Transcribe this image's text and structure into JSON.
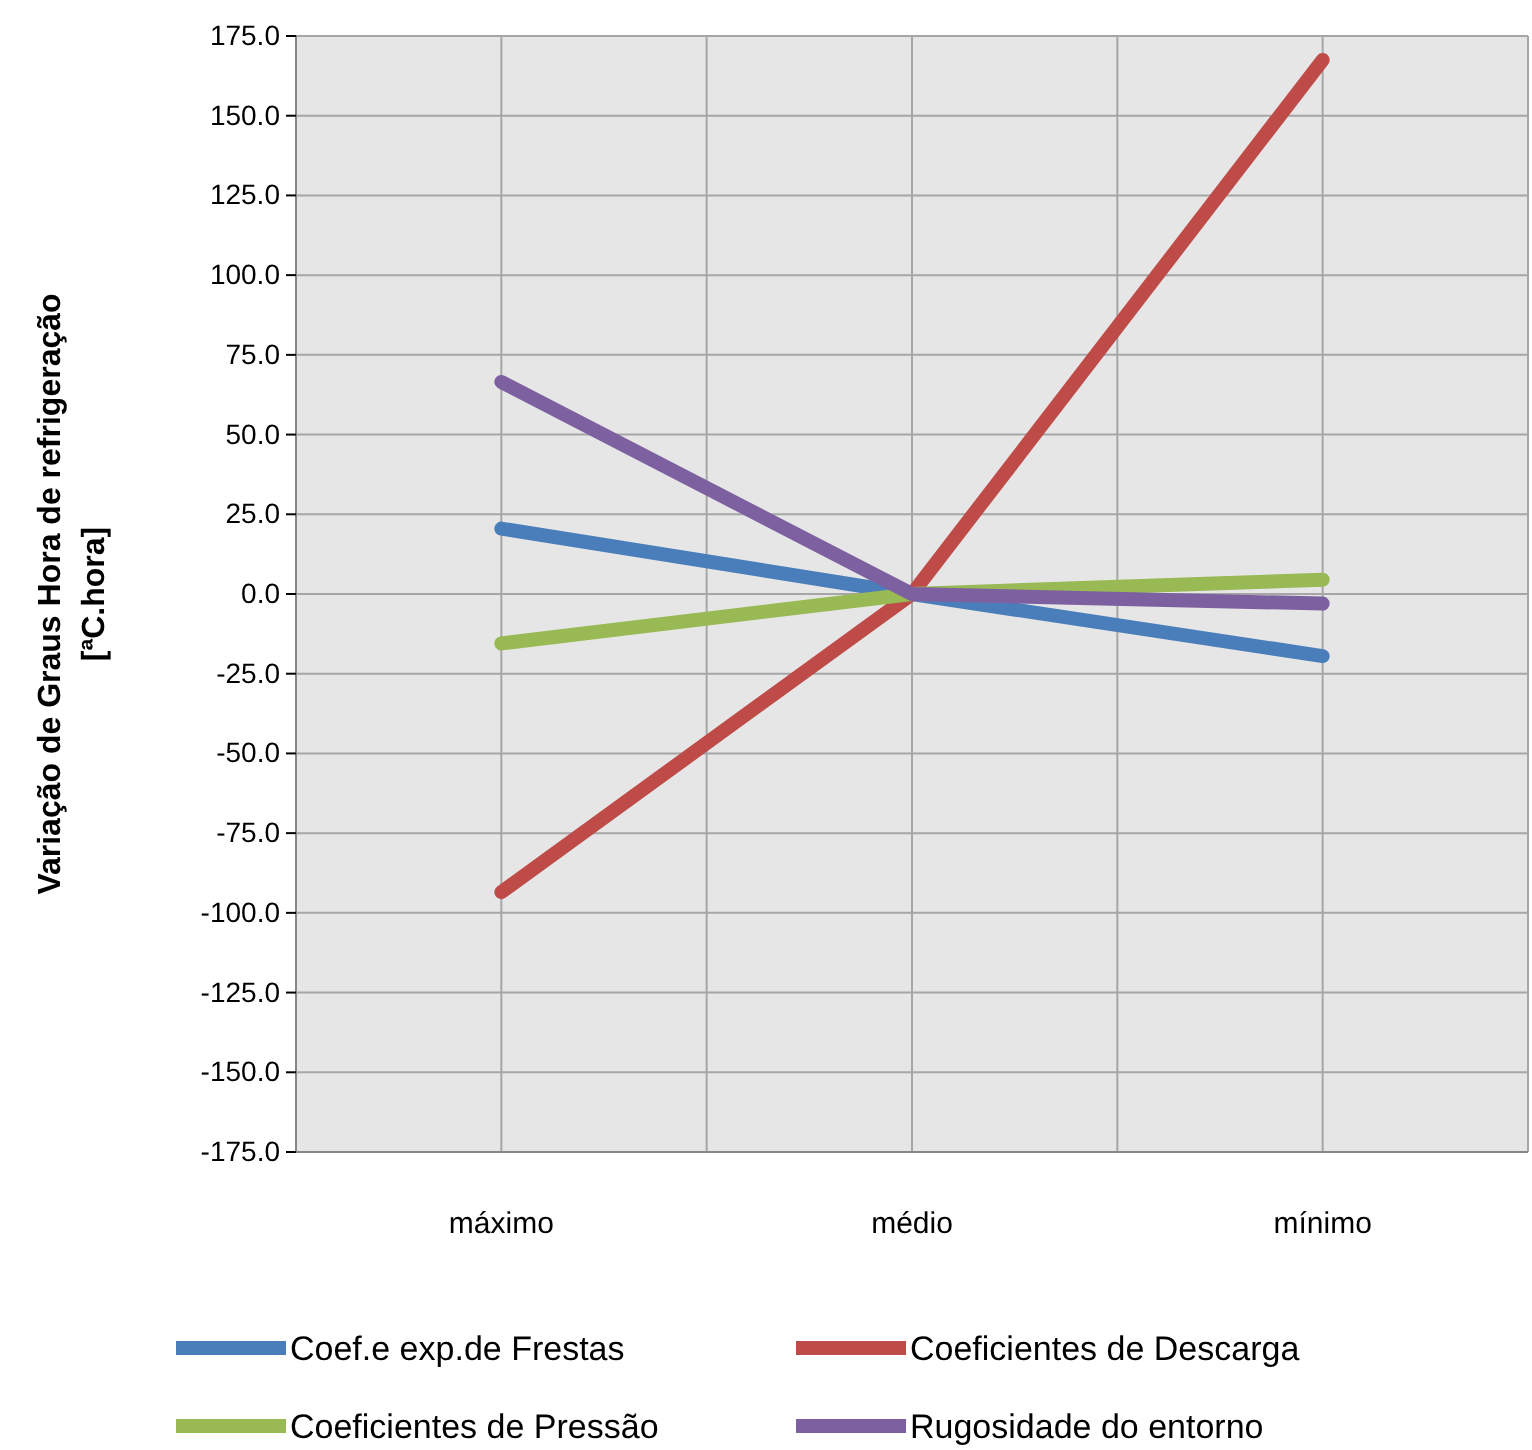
{
  "chart_data": {
    "type": "line",
    "ylabel": "Variação de Graus Hora de refrigeração\n[ªC.hora]",
    "categories": [
      "máximo",
      "médio",
      "mínimo"
    ],
    "series": [
      {
        "name": "Coef.e exp.de Frestas",
        "color": "#4a7ebb",
        "values": [
          20.5,
          0,
          -19.5
        ]
      },
      {
        "name": "Coeficientes de Descarga",
        "color": "#be4b48",
        "values": [
          -93.5,
          0,
          167.5
        ]
      },
      {
        "name": "Coeficientes de Pressão",
        "color": "#98b954",
        "values": [
          -15.5,
          0,
          4.5
        ]
      },
      {
        "name": "Rugosidade do entorno",
        "color": "#7d60a0",
        "values": [
          66.5,
          0,
          -3
        ]
      }
    ],
    "ylim": [
      -175,
      175
    ],
    "yticks": [
      {
        "value": 175,
        "label": "175.0"
      },
      {
        "value": 150,
        "label": "150.0"
      },
      {
        "value": 125,
        "label": "125.0"
      },
      {
        "value": 100,
        "label": "100.0"
      },
      {
        "value": 75,
        "label": "75.0"
      },
      {
        "value": 50,
        "label": "50.0"
      },
      {
        "value": 25,
        "label": "25.0"
      },
      {
        "value": 0,
        "label": "0.0"
      },
      {
        "value": -25,
        "label": "-25.0"
      },
      {
        "value": -50,
        "label": "-50.0"
      },
      {
        "value": -75,
        "label": "-75.0"
      },
      {
        "value": -100,
        "label": "-100.0"
      },
      {
        "value": -125,
        "label": "-125.0"
      },
      {
        "value": -150,
        "label": "-150.0"
      },
      {
        "value": -175,
        "label": "-175.0"
      }
    ],
    "grid": true,
    "legend": "bottom",
    "marker": "none",
    "line_style": "solid"
  }
}
